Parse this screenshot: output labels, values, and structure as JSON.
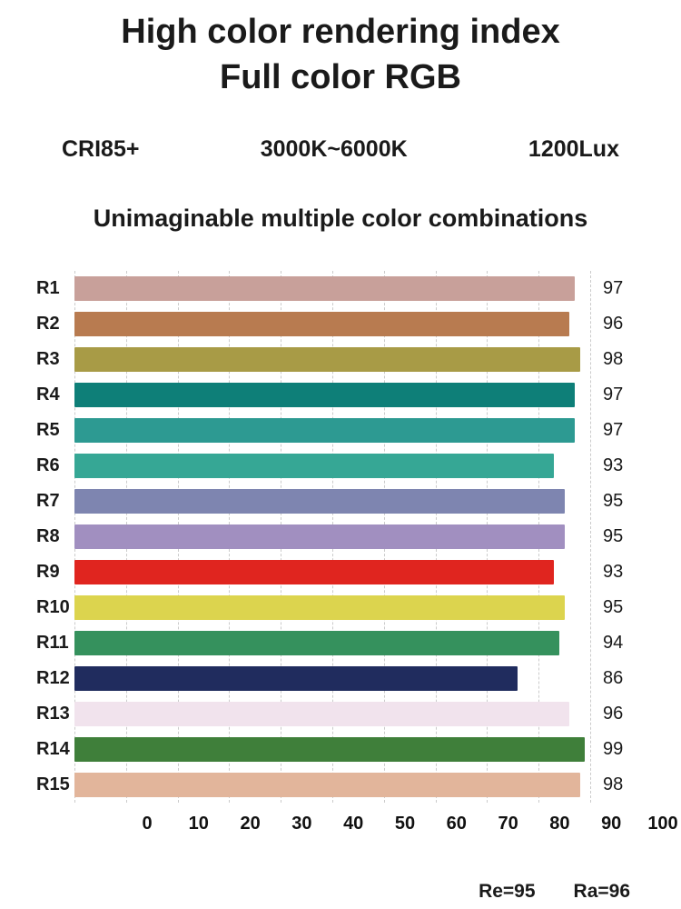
{
  "header": {
    "title_line1": "High color rendering index",
    "title_line2": "Full color RGB",
    "specs": [
      "CRI85+",
      "3000K~6000K",
      "1200Lux"
    ],
    "subtitle": "Unimaginable multiple color combinations"
  },
  "chart_data": {
    "type": "bar",
    "orientation": "horizontal",
    "title": "CRI R1-R15 values",
    "categories": [
      "R1",
      "R2",
      "R3",
      "R4",
      "R5",
      "R6",
      "R7",
      "R8",
      "R9",
      "R10",
      "R11",
      "R12",
      "R13",
      "R14",
      "R15"
    ],
    "values": [
      97,
      96,
      98,
      97,
      97,
      93,
      95,
      95,
      93,
      95,
      94,
      86,
      96,
      99,
      98
    ],
    "colors": [
      "#c8a09a",
      "#b87b50",
      "#a89b46",
      "#0e7f78",
      "#2d9a92",
      "#36a795",
      "#7e85b0",
      "#a18fc0",
      "#e0251f",
      "#dcd44e",
      "#35915d",
      "#202c5e",
      "#f1e3ed",
      "#3f7f3a",
      "#e2b59b"
    ],
    "xlim": [
      0,
      100
    ],
    "xticks": [
      0,
      10,
      20,
      30,
      40,
      50,
      60,
      70,
      80,
      90,
      100
    ],
    "grid": "dashed-vertical",
    "legend": "none"
  },
  "footer": {
    "re_label": "Re=95",
    "ra_label": "Ra=96"
  }
}
